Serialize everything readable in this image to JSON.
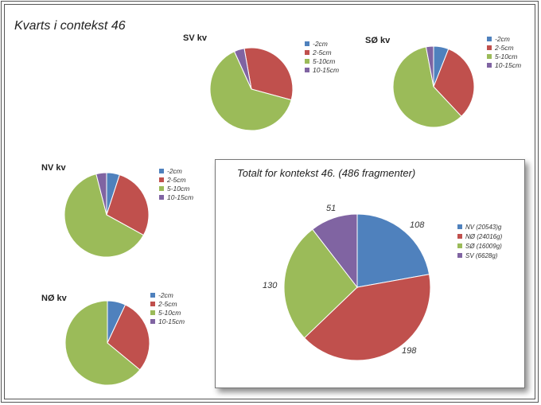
{
  "title": "Kvarts i contekst 46",
  "colors": [
    "#4f81bd",
    "#c0504d",
    "#9bbb59",
    "#8064a2"
  ],
  "chart_data": [
    {
      "type": "pie",
      "title": "SV kv",
      "categories": [
        "-2cm",
        "2-5cm",
        "5-10cm",
        "10-15cm"
      ],
      "values": [
        0,
        32,
        64,
        4
      ]
    },
    {
      "type": "pie",
      "title": "SØ kv",
      "categories": [
        "-2cm",
        "2-5cm",
        "5-10cm",
        "10-15cm"
      ],
      "values": [
        6,
        32,
        59,
        3
      ]
    },
    {
      "type": "pie",
      "title": "NV kv",
      "categories": [
        "-2cm",
        "2-5cm",
        "5-10cm",
        "10-15cm"
      ],
      "values": [
        5,
        28,
        63,
        4
      ]
    },
    {
      "type": "pie",
      "title": "NØ kv",
      "categories": [
        "-2cm",
        "2-5cm",
        "5-10cm",
        "10-15cm"
      ],
      "values": [
        7,
        29,
        64,
        0
      ]
    },
    {
      "type": "pie",
      "title": "Totalt for kontekst 46. (486 fragmenter)",
      "categories": [
        "NV (20543)g",
        "NØ (24016g)",
        "SØ (16009g)",
        "SV (6628g)"
      ],
      "values": [
        108,
        198,
        130,
        51
      ],
      "data_labels": [
        "108",
        "198",
        "130",
        "51"
      ]
    }
  ]
}
